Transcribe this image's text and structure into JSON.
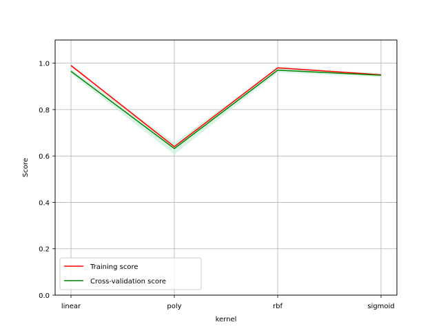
{
  "chart_data": {
    "type": "line",
    "categories": [
      "linear",
      "poly",
      "rbf",
      "sigmoid"
    ],
    "series": [
      {
        "name": "Training score",
        "values": [
          0.99,
          0.64,
          0.98,
          0.95
        ],
        "band": [
          0.005,
          0.008,
          0.004,
          0.004
        ],
        "color": "#ff0000",
        "band_color": "#ffd2d2"
      },
      {
        "name": "Cross-validation score",
        "values": [
          0.965,
          0.632,
          0.97,
          0.948
        ],
        "band": [
          0.01,
          0.025,
          0.01,
          0.008
        ],
        "color": "#008000",
        "band_color": "#c8f0d8"
      }
    ],
    "xlabel": "kernel",
    "ylabel": "Score",
    "ylim": [
      0.0,
      1.1
    ],
    "yticks": [
      "0.0",
      "0.2",
      "0.4",
      "0.6",
      "0.8",
      "1.0"
    ],
    "grid": true,
    "grid_color": "#b0b0b0",
    "legend_position": "lower-left"
  }
}
